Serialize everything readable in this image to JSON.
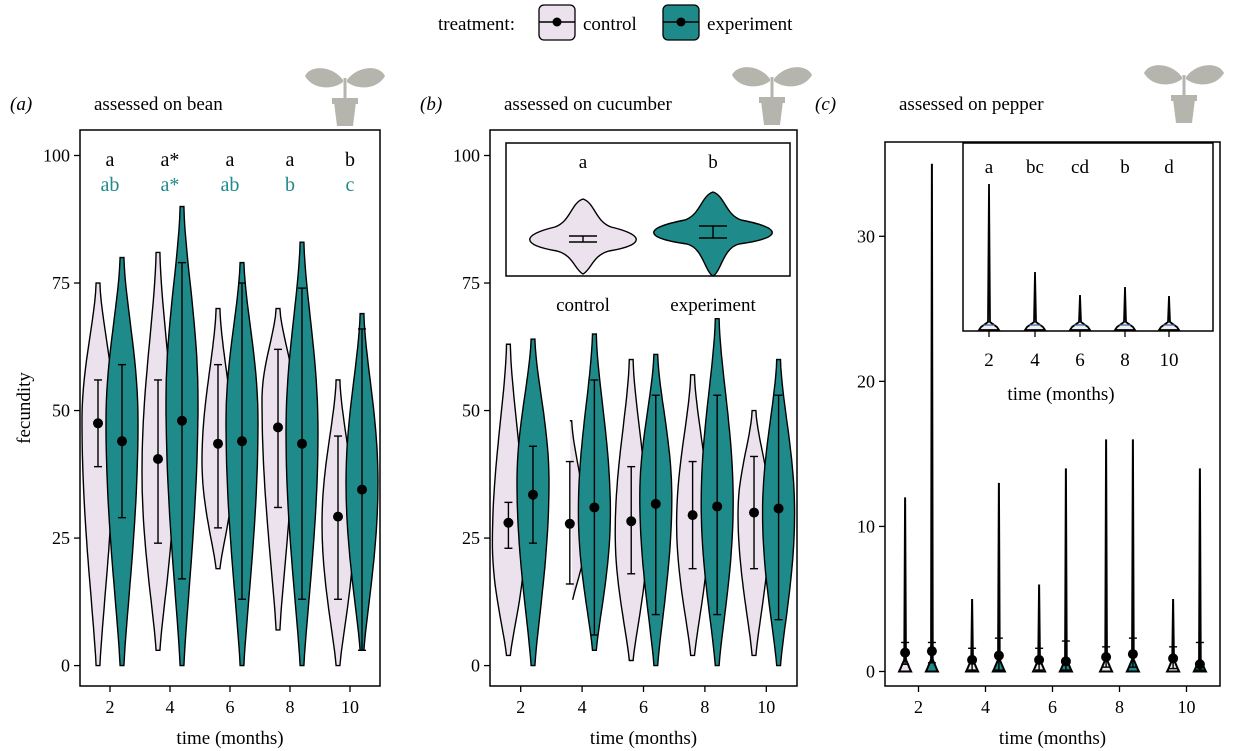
{
  "legend": {
    "title": "treatment:",
    "items": [
      {
        "label": "control",
        "color": "#ece2ee"
      },
      {
        "label": "experiment",
        "color": "#1f8a8a"
      }
    ]
  },
  "colors": {
    "control": "#ece2ee",
    "experiment": "#1f8a8a",
    "outline": "#000000",
    "plant": "#b5b5ad"
  },
  "chart_data": [
    {
      "id": "a",
      "type": "violin",
      "panel_letter": "(a)",
      "title": "assessed on bean",
      "xlabel": "time (months)",
      "ylabel": "fecundity",
      "xlim": [
        1,
        11
      ],
      "ylim": [
        -4,
        105
      ],
      "xticks": [
        2,
        4,
        6,
        8,
        10
      ],
      "yticks": [
        0,
        25,
        50,
        75,
        100
      ],
      "letters_control": [
        "a",
        "a*",
        "a",
        "a",
        "b"
      ],
      "letters_experiment": [
        "ab",
        "a*",
        "ab",
        "b",
        "c"
      ],
      "series": [
        {
          "name": "control",
          "values": [
            {
              "x": 1.6,
              "min": 0,
              "max": 75,
              "mean": 47.5,
              "err": [
                39,
                56
              ],
              "mode": 48
            },
            {
              "x": 3.6,
              "min": 3,
              "max": 81,
              "mean": 40.5,
              "err": [
                24,
                56
              ],
              "mode": 38
            },
            {
              "x": 5.6,
              "min": 19,
              "max": 70,
              "mean": 43.5,
              "err": [
                27,
                59
              ],
              "mode": 40
            },
            {
              "x": 7.6,
              "min": 7,
              "max": 70,
              "mean": 46.7,
              "err": [
                31,
                62
              ],
              "mode": 52
            },
            {
              "x": 9.6,
              "min": 0,
              "max": 56,
              "mean": 29.2,
              "err": [
                13,
                45
              ],
              "mode": 28
            }
          ]
        },
        {
          "name": "experiment",
          "values": [
            {
              "x": 2.4,
              "min": 0,
              "max": 80,
              "mean": 44,
              "err": [
                29,
                59
              ],
              "mode": 48
            },
            {
              "x": 4.4,
              "min": 0,
              "max": 90,
              "mean": 48,
              "err": [
                17,
                79
              ],
              "mode": 52
            },
            {
              "x": 6.4,
              "min": 0,
              "max": 79,
              "mean": 44,
              "err": [
                13,
                75
              ],
              "mode": 48
            },
            {
              "x": 8.4,
              "min": 0,
              "max": 83,
              "mean": 43.5,
              "err": [
                13,
                74
              ],
              "mode": 46
            },
            {
              "x": 10.4,
              "min": 3,
              "max": 69,
              "mean": 34.5,
              "err": [
                3,
                66
              ],
              "mode": 36
            }
          ]
        }
      ]
    },
    {
      "id": "b",
      "type": "violin",
      "panel_letter": "(b)",
      "title": "assessed on cucumber",
      "xlabel": "time (months)",
      "ylabel": "",
      "xlim": [
        1,
        11
      ],
      "ylim": [
        -4,
        105
      ],
      "xticks": [
        2,
        4,
        6,
        8,
        10
      ],
      "yticks": [
        0,
        25,
        50,
        75,
        100
      ],
      "series": [
        {
          "name": "control",
          "values": [
            {
              "x": 1.6,
              "min": 2,
              "max": 63,
              "mean": 28,
              "err": [
                23,
                32
              ],
              "mode": 24
            },
            {
              "x": 3.6,
              "min": 12,
              "max": 48,
              "mean": 27.8,
              "err": [
                16,
                40
              ],
              "mode": 26
            },
            {
              "x": 5.6,
              "min": 1,
              "max": 60,
              "mean": 28.3,
              "err": [
                18,
                39
              ],
              "mode": 26
            },
            {
              "x": 7.6,
              "min": 2,
              "max": 57,
              "mean": 29.5,
              "err": [
                19,
                40
              ],
              "mode": 28
            },
            {
              "x": 9.6,
              "min": 2,
              "max": 50,
              "mean": 30,
              "err": [
                19,
                41
              ],
              "mode": 30
            }
          ]
        },
        {
          "name": "experiment",
          "values": [
            {
              "x": 2.4,
              "min": 0,
              "max": 64,
              "mean": 33.5,
              "err": [
                24,
                43
              ],
              "mode": 36
            },
            {
              "x": 4.4,
              "min": 3,
              "max": 65,
              "mean": 31,
              "err": [
                6,
                56
              ],
              "mode": 30
            },
            {
              "x": 6.4,
              "min": 0,
              "max": 61,
              "mean": 31.7,
              "err": [
                10,
                53
              ],
              "mode": 33
            },
            {
              "x": 8.4,
              "min": 0,
              "max": 68,
              "mean": 31.2,
              "err": [
                10,
                53
              ],
              "mode": 32
            },
            {
              "x": 10.4,
              "min": 0,
              "max": 60,
              "mean": 30.8,
              "err": [
                9,
                53
              ],
              "mode": 30
            }
          ]
        }
      ],
      "inset": {
        "categories": [
          "control",
          "experiment"
        ],
        "letters": [
          "a",
          "b"
        ]
      }
    },
    {
      "id": "c",
      "type": "violin",
      "panel_letter": "(c)",
      "title": "assessed on pepper",
      "xlabel": "time (months)",
      "ylabel": "",
      "xlim": [
        1,
        11
      ],
      "ylim": [
        -1,
        36.5
      ],
      "xticks": [
        2,
        4,
        6,
        8,
        10
      ],
      "yticks": [
        0,
        10,
        20,
        30
      ],
      "series": [
        {
          "name": "control",
          "values": [
            {
              "x": 1.6,
              "min": 0,
              "max": 12,
              "mean": 1.3,
              "err": [
                0.5,
                2.0
              ]
            },
            {
              "x": 3.6,
              "min": 0,
              "max": 5,
              "mean": 0.8,
              "err": [
                0.1,
                1.6
              ]
            },
            {
              "x": 5.6,
              "min": 0,
              "max": 6,
              "mean": 0.8,
              "err": [
                0.1,
                1.6
              ]
            },
            {
              "x": 7.6,
              "min": 0,
              "max": 16,
              "mean": 1.0,
              "err": [
                0.3,
                1.7
              ]
            },
            {
              "x": 9.6,
              "min": 0,
              "max": 5,
              "mean": 0.9,
              "err": [
                0.2,
                1.7
              ]
            }
          ]
        },
        {
          "name": "experiment",
          "values": [
            {
              "x": 2.4,
              "min": 0,
              "max": 35,
              "mean": 1.4,
              "err": [
                0.6,
                2.0
              ]
            },
            {
              "x": 4.4,
              "min": 0,
              "max": 13,
              "mean": 1.1,
              "err": [
                0.1,
                2.3
              ]
            },
            {
              "x": 6.4,
              "min": 0,
              "max": 14,
              "mean": 0.7,
              "err": [
                0.1,
                2.1
              ]
            },
            {
              "x": 8.4,
              "min": 0,
              "max": 16,
              "mean": 1.2,
              "err": [
                0.3,
                2.3
              ]
            },
            {
              "x": 10.4,
              "min": 0,
              "max": 14,
              "mean": 0.5,
              "err": [
                0.1,
                2.0
              ]
            }
          ]
        }
      ],
      "inset": {
        "xlabel": "time (months)",
        "xticks": [
          2,
          4,
          6,
          8,
          10
        ],
        "letters": [
          "a",
          "bc",
          "cd",
          "b",
          "d"
        ]
      }
    }
  ]
}
